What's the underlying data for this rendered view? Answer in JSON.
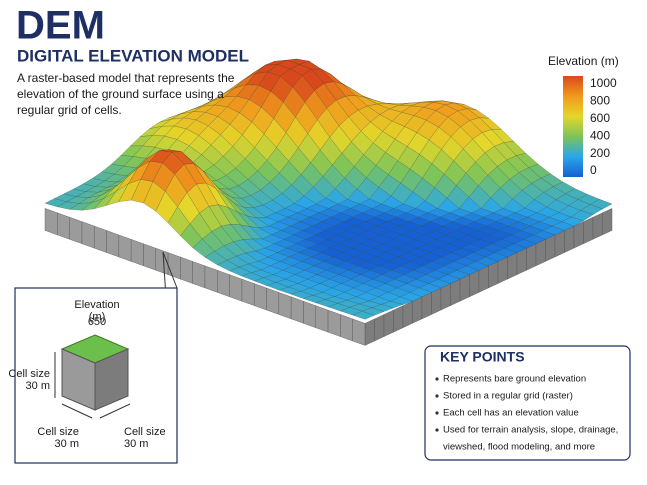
{
  "header": {
    "title": "DEM",
    "subtitle": "DIGITAL ELEVATION MODEL",
    "description": [
      "A raster-based model that represents the",
      "elevation of the ground surface using a",
      "regular grid of cells."
    ]
  },
  "legend": {
    "title": "Elevation (m)",
    "ticks": [
      1000,
      800,
      600,
      400,
      200,
      0
    ]
  },
  "inset": {
    "elevation_label": [
      "Elevation",
      "(m)"
    ],
    "elevation_value": 650,
    "cell_size_left": [
      "Cell size",
      "30 m"
    ],
    "cell_size_front": [
      "Cell size",
      "30 m"
    ],
    "cell_size_right": [
      "Cell size",
      "30 m"
    ]
  },
  "key_points": {
    "title": "KEY POINTS",
    "items": [
      [
        "Represents bare ground elevation"
      ],
      [
        "Stored in a regular grid (raster)"
      ],
      [
        "Each cell has an elevation value"
      ],
      [
        "Used for terrain analysis, slope, drainage,",
        "viewshed, flood modeling, and more"
      ]
    ]
  }
}
